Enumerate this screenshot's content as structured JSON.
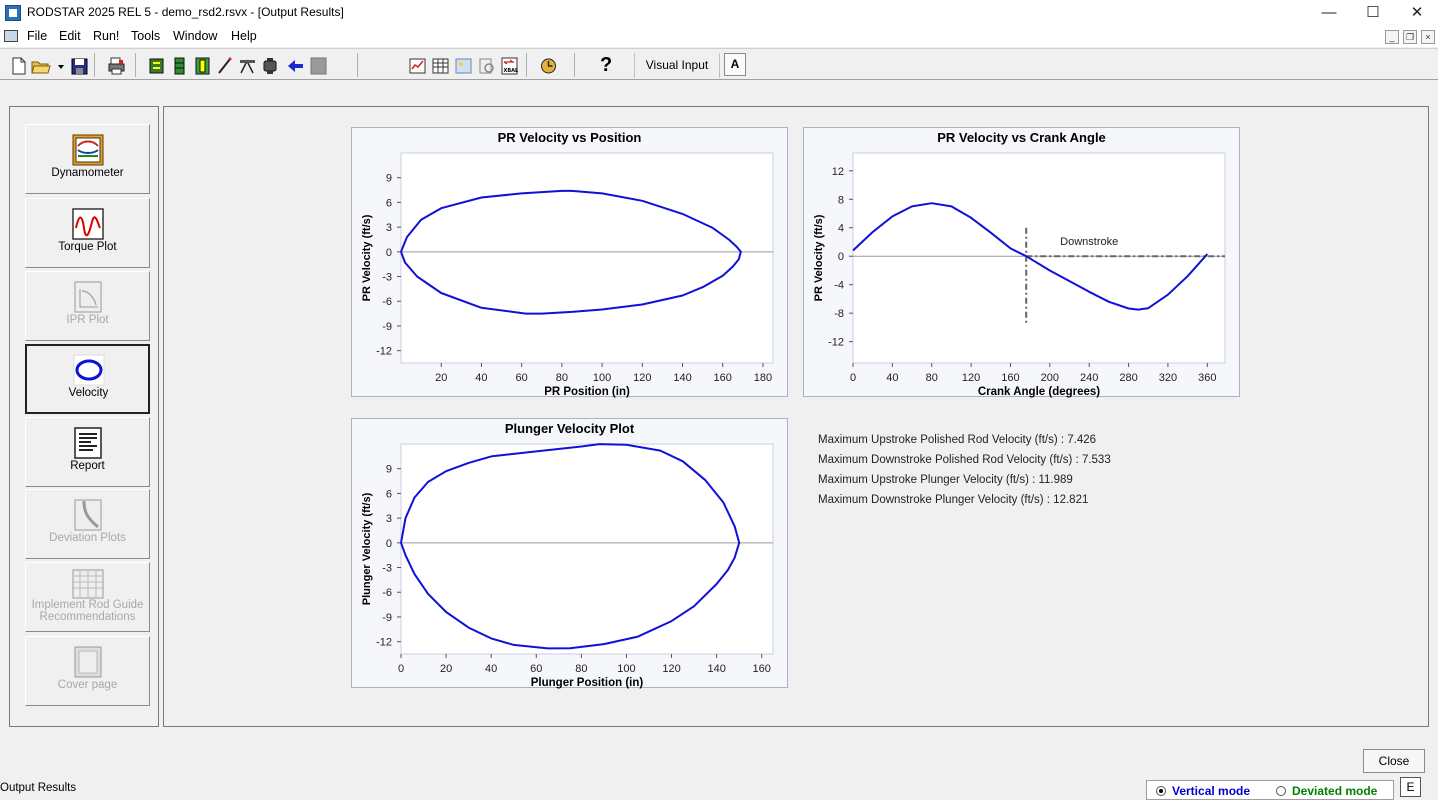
{
  "window": {
    "title": "RODSTAR 2025 REL 5 - demo_rsd2.rsvx - [Output Results]",
    "controls": {
      "minimize": "—",
      "maximize": "☐",
      "close": "✕"
    }
  },
  "menu": [
    "File",
    "Edit",
    "Run!",
    "Tools",
    "Window",
    "Help"
  ],
  "mdi_controls": {
    "minimize": "_",
    "restore": "❐",
    "close": "×"
  },
  "toolbar": {
    "visual_input": "Visual Input",
    "a_button": "A",
    "help_glyph": "?"
  },
  "sidebar": {
    "items": [
      {
        "label": "Dynamometer",
        "icon": "dynamometer-icon",
        "enabled": true,
        "active": false
      },
      {
        "label": "Torque Plot",
        "icon": "torque-plot-icon",
        "enabled": true,
        "active": false
      },
      {
        "label": "IPR Plot",
        "icon": "ipr-plot-icon",
        "enabled": false,
        "active": false
      },
      {
        "label": "Velocity",
        "icon": "velocity-icon",
        "enabled": true,
        "active": true
      },
      {
        "label": "Report",
        "icon": "report-icon",
        "enabled": true,
        "active": false
      },
      {
        "label": "Deviation Plots",
        "icon": "deviation-plots-icon",
        "enabled": false,
        "active": false
      },
      {
        "label": "Implement Rod Guide Recommendations",
        "icon": "rod-guide-icon",
        "enabled": false,
        "active": false
      },
      {
        "label": "Cover page",
        "icon": "cover-page-icon",
        "enabled": false,
        "active": false
      }
    ]
  },
  "chart_data": [
    {
      "type": "line",
      "title": "PR Velocity vs Position",
      "xlabel": "PR Position (in)",
      "ylabel": "PR Velocity (ft/s)",
      "xlim": [
        0,
        185
      ],
      "ylim": [
        -13.5,
        12
      ],
      "xticks": [
        20,
        40,
        60,
        80,
        100,
        120,
        140,
        160,
        180
      ],
      "yticks": [
        9,
        6,
        3,
        0,
        -3,
        -6,
        -9,
        -12
      ],
      "line_color": "#1010d8",
      "series": [
        {
          "x": [
            0,
            3,
            10,
            20,
            40,
            60,
            80,
            85,
            100,
            120,
            140,
            155,
            163,
            167,
            169,
            168,
            165,
            160,
            150,
            140,
            120,
            100,
            85,
            70,
            62,
            40,
            20,
            8,
            2,
            0
          ],
          "y": [
            0,
            1.8,
            3.9,
            5.3,
            6.6,
            7.1,
            7.4,
            7.4,
            7.1,
            6.2,
            4.6,
            2.9,
            1.5,
            0.6,
            0,
            -0.9,
            -1.8,
            -2.9,
            -4.3,
            -5.3,
            -6.4,
            -7.0,
            -7.3,
            -7.5,
            -7.5,
            -6.8,
            -5.0,
            -3.0,
            -1.3,
            0
          ]
        }
      ]
    },
    {
      "type": "line",
      "title": "PR Velocity vs Crank Angle",
      "xlabel": "Crank Angle (degrees)",
      "ylabel": "PR Velocity (ft/s)",
      "xlim": [
        0,
        378
      ],
      "ylim": [
        -15,
        14.5
      ],
      "xticks": [
        0,
        40,
        80,
        120,
        160,
        200,
        240,
        280,
        320,
        360
      ],
      "yticks": [
        12,
        8,
        4,
        0,
        -4,
        -8,
        -12
      ],
      "line_color": "#1010d8",
      "annotation": "Downstroke",
      "marker_angle": 176,
      "series": [
        {
          "x": [
            0,
            20,
            40,
            60,
            80,
            100,
            120,
            140,
            160,
            176,
            200,
            220,
            240,
            260,
            280,
            290,
            300,
            320,
            340,
            360
          ],
          "y": [
            0.8,
            3.4,
            5.6,
            7.0,
            7.45,
            7.0,
            5.4,
            3.3,
            1.1,
            0,
            -2.0,
            -3.5,
            -5.0,
            -6.4,
            -7.35,
            -7.5,
            -7.3,
            -5.4,
            -2.8,
            0.3
          ]
        }
      ]
    },
    {
      "type": "line",
      "title": "Plunger Velocity Plot",
      "xlabel": "Plunger Position (in)",
      "ylabel": "Plunger Velocity (ft/s)",
      "xlim": [
        0,
        165
      ],
      "ylim": [
        -13.5,
        12
      ],
      "xticks": [
        0,
        20,
        40,
        60,
        80,
        100,
        120,
        140,
        160
      ],
      "yticks": [
        9,
        6,
        3,
        0,
        -3,
        -6,
        -9,
        -12
      ],
      "line_color": "#1010d8",
      "series": [
        {
          "x": [
            0,
            2,
            6,
            12,
            20,
            30,
            40,
            60,
            80,
            88,
            100,
            115,
            125,
            135,
            143,
            148,
            150,
            148,
            145,
            140,
            130,
            120,
            105,
            90,
            75,
            65,
            50,
            40,
            30,
            20,
            12,
            6,
            2,
            0
          ],
          "y": [
            0,
            3.0,
            5.5,
            7.4,
            8.7,
            9.7,
            10.5,
            11.1,
            11.7,
            11.99,
            11.9,
            11.2,
            9.9,
            7.6,
            4.9,
            2.0,
            0,
            -1.8,
            -3.3,
            -5.0,
            -7.7,
            -9.5,
            -11.4,
            -12.3,
            -12.8,
            -12.82,
            -12.4,
            -11.6,
            -10.3,
            -8.4,
            -6.2,
            -3.8,
            -1.5,
            0
          ]
        }
      ]
    }
  ],
  "stats": [
    "Maximum Upstroke Polished Rod Velocity (ft/s) : 7.426",
    "Maximum Downstroke Polished Rod Velocity (ft/s) : 7.533",
    "Maximum Upstroke Plunger Velocity (ft/s) : 11.989",
    "Maximum Downstroke Plunger Velocity (ft/s) : 12.821"
  ],
  "footer": {
    "close_label": "Close",
    "status_text": "Output Results",
    "vertical_mode": "Vertical mode",
    "deviated_mode": "Deviated mode",
    "e_label": "E",
    "vertical_color": "#0000c8",
    "deviated_color": "#008000"
  }
}
